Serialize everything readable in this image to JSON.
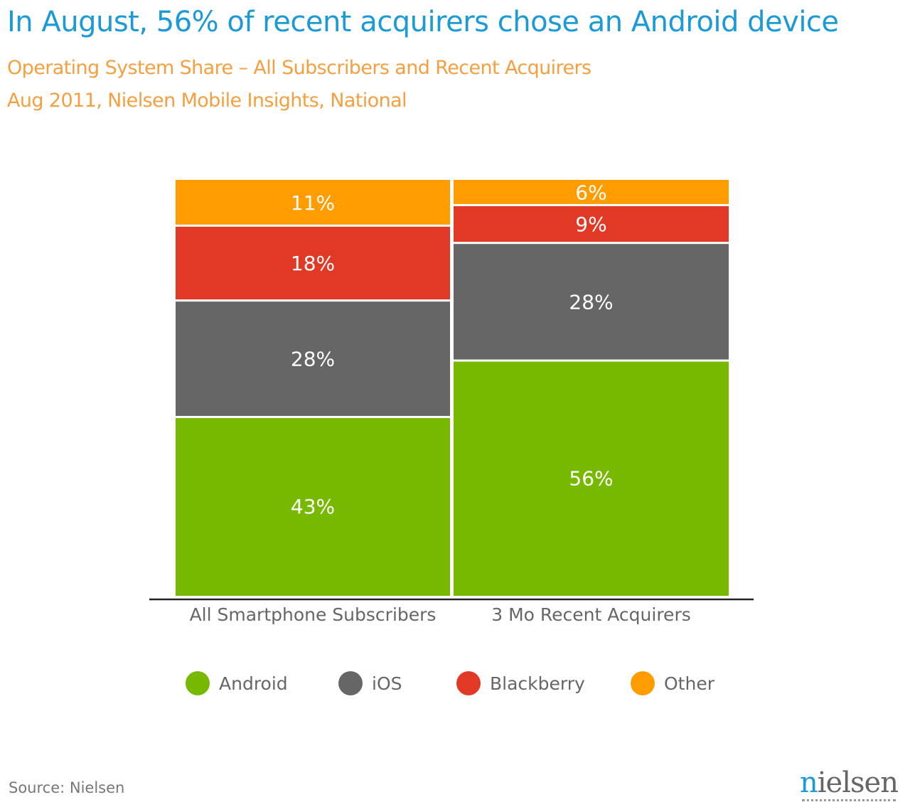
{
  "chart_data": {
    "type": "bar",
    "stacked": true,
    "title": "In August, 56% of recent acquirers chose an Android device",
    "subtitles": [
      "Operating System Share – All Subscribers and Recent Acquirers",
      "Aug 2011, Nielsen Mobile Insights, National"
    ],
    "categories": [
      "All Smartphone Subscribers",
      "3 Mo Recent Acquirers"
    ],
    "series": [
      {
        "name": "Android",
        "color": "#77b800",
        "values": [
          43,
          56
        ]
      },
      {
        "name": "iOS",
        "color": "#666666",
        "values": [
          28,
          28
        ]
      },
      {
        "name": "Blackberry",
        "color": "#e03a27",
        "values": [
          18,
          9
        ]
      },
      {
        "name": "Other",
        "color": "#ff9c00",
        "values": [
          11,
          6
        ]
      }
    ],
    "unit": "%",
    "legend": "bottom",
    "grid": false
  },
  "source": "Source: Nielsen",
  "logo": "nielsen"
}
